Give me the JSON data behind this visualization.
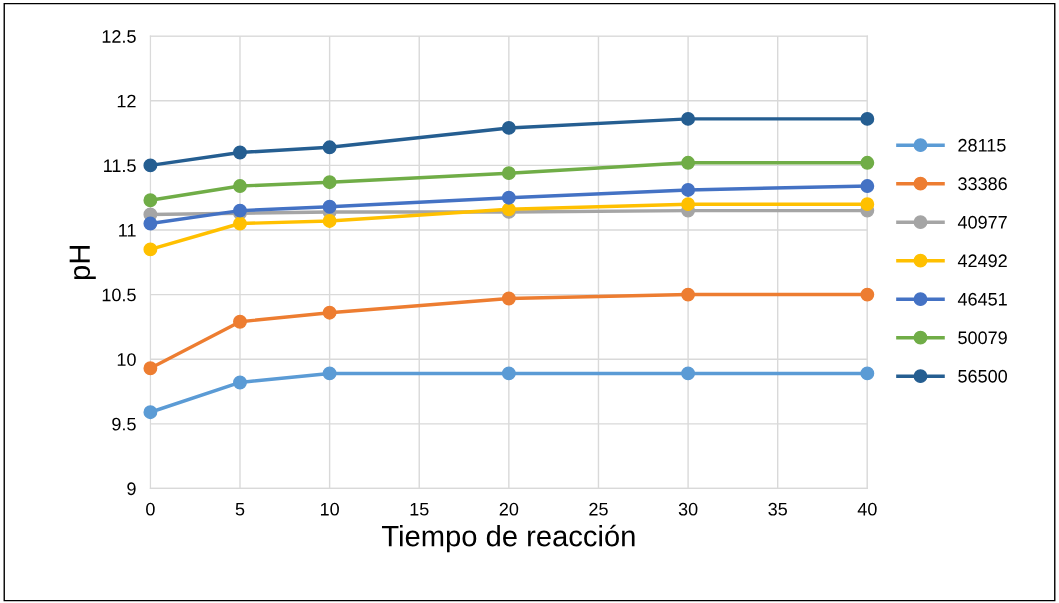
{
  "chart_data": {
    "type": "line",
    "xlabel": "Tiempo de reacción",
    "ylabel": "pH",
    "x": [
      0,
      5,
      10,
      20,
      30,
      40
    ],
    "series": [
      {
        "name": "28115",
        "color": "#5b9bd5",
        "values": [
          9.59,
          9.82,
          9.89,
          9.89,
          9.89,
          9.89
        ]
      },
      {
        "name": "33386",
        "color": "#ed7d31",
        "values": [
          9.93,
          10.29,
          10.36,
          10.47,
          10.5,
          10.5
        ]
      },
      {
        "name": "40977",
        "color": "#a5a5a5",
        "values": [
          11.12,
          11.13,
          11.14,
          11.14,
          11.15,
          11.15
        ]
      },
      {
        "name": "42492",
        "color": "#ffc000",
        "values": [
          10.85,
          11.05,
          11.07,
          11.16,
          11.2,
          11.2
        ]
      },
      {
        "name": "46451",
        "color": "#4472c4",
        "values": [
          11.05,
          11.15,
          11.18,
          11.25,
          11.31,
          11.34
        ]
      },
      {
        "name": "50079",
        "color": "#70ad47",
        "values": [
          11.23,
          11.34,
          11.37,
          11.44,
          11.52,
          11.52
        ]
      },
      {
        "name": "56500",
        "color": "#255e91",
        "values": [
          11.5,
          11.6,
          11.64,
          11.79,
          11.86,
          11.86
        ]
      }
    ],
    "xlim": [
      0,
      40
    ],
    "xticks": [
      0,
      5,
      10,
      15,
      20,
      25,
      30,
      35,
      40
    ],
    "ylim": [
      9,
      12.5
    ],
    "yticks": [
      9,
      {
        "value": 9.5,
        "label": "9.5"
      },
      10,
      {
        "value": 10.5,
        "label": "10.5"
      },
      11,
      {
        "value": 11.5,
        "label": "11.5"
      },
      12,
      {
        "value": 12.5,
        "label": "12.5"
      }
    ],
    "grid": true,
    "legend": "right",
    "marker": "circle",
    "line_style": "solid"
  }
}
